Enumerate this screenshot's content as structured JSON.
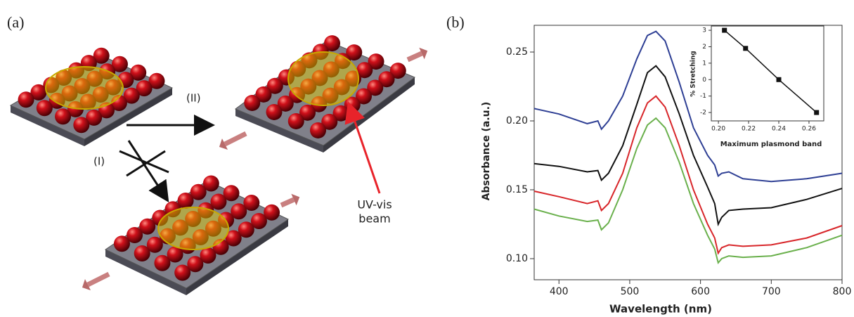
{
  "diagram": {
    "label": "(a)",
    "step_2": "(II)",
    "step_1": "(I)",
    "beam_label": [
      "UV-vis",
      "beam"
    ]
  },
  "chart_data": [
    {
      "type": "line",
      "panel_label": "(b)",
      "x_label": "Wavelength (nm)",
      "y_label": "Absorbance (a.u.)",
      "xlim": [
        365,
        800
      ],
      "ylim": [
        0.0847,
        0.2694
      ],
      "xticks": [
        400,
        500,
        600,
        700,
        800
      ],
      "yticks": [
        {
          "value": 0.1,
          "label": "0.10"
        },
        0.15,
        {
          "value": 0.2,
          "label": "0.20"
        },
        0.25
      ],
      "x": [
        365,
        400,
        440,
        455,
        460,
        470,
        490,
        510,
        525,
        537,
        550,
        570,
        590,
        610,
        620,
        625,
        630,
        640,
        660,
        700,
        750,
        800
      ],
      "series": [
        {
          "color": "#2e3f94",
          "values": [
            0.209,
            0.205,
            0.198,
            0.2,
            0.194,
            0.2,
            0.218,
            0.245,
            0.262,
            0.265,
            0.258,
            0.228,
            0.195,
            0.175,
            0.168,
            0.16,
            0.162,
            0.163,
            0.158,
            0.156,
            0.158,
            0.162
          ]
        },
        {
          "color": "#111111",
          "values": [
            0.169,
            0.167,
            0.163,
            0.164,
            0.157,
            0.162,
            0.182,
            0.212,
            0.235,
            0.24,
            0.232,
            0.205,
            0.175,
            0.152,
            0.14,
            0.125,
            0.13,
            0.135,
            0.136,
            0.137,
            0.143,
            0.151
          ]
        },
        {
          "color": "#d8262a",
          "values": [
            0.149,
            0.145,
            0.14,
            0.142,
            0.135,
            0.14,
            0.162,
            0.195,
            0.213,
            0.218,
            0.21,
            0.182,
            0.15,
            0.125,
            0.115,
            0.104,
            0.108,
            0.11,
            0.109,
            0.11,
            0.115,
            0.124
          ]
        },
        {
          "color": "#6ab04c",
          "values": [
            0.136,
            0.131,
            0.127,
            0.128,
            0.121,
            0.126,
            0.15,
            0.18,
            0.197,
            0.202,
            0.195,
            0.17,
            0.14,
            0.117,
            0.107,
            0.097,
            0.1,
            0.102,
            0.101,
            0.102,
            0.108,
            0.117
          ]
        }
      ]
    },
    {
      "type": "line",
      "x_label": "Maximum plasmond band",
      "y_label": "% Stretching",
      "xlim": [
        0.1953,
        0.2698
      ],
      "ylim": [
        -2.51,
        3.26
      ],
      "xticks": [
        {
          "value": 0.2,
          "label": "0.20"
        },
        0.22,
        0.24,
        0.26
      ],
      "yticks": [
        -2,
        -1,
        0,
        1,
        2,
        3
      ],
      "x": [
        0.204,
        0.218,
        0.24,
        0.265
      ],
      "series": [
        {
          "color": "#111111",
          "values": [
            3,
            1.9,
            0,
            -2
          ]
        }
      ]
    }
  ]
}
